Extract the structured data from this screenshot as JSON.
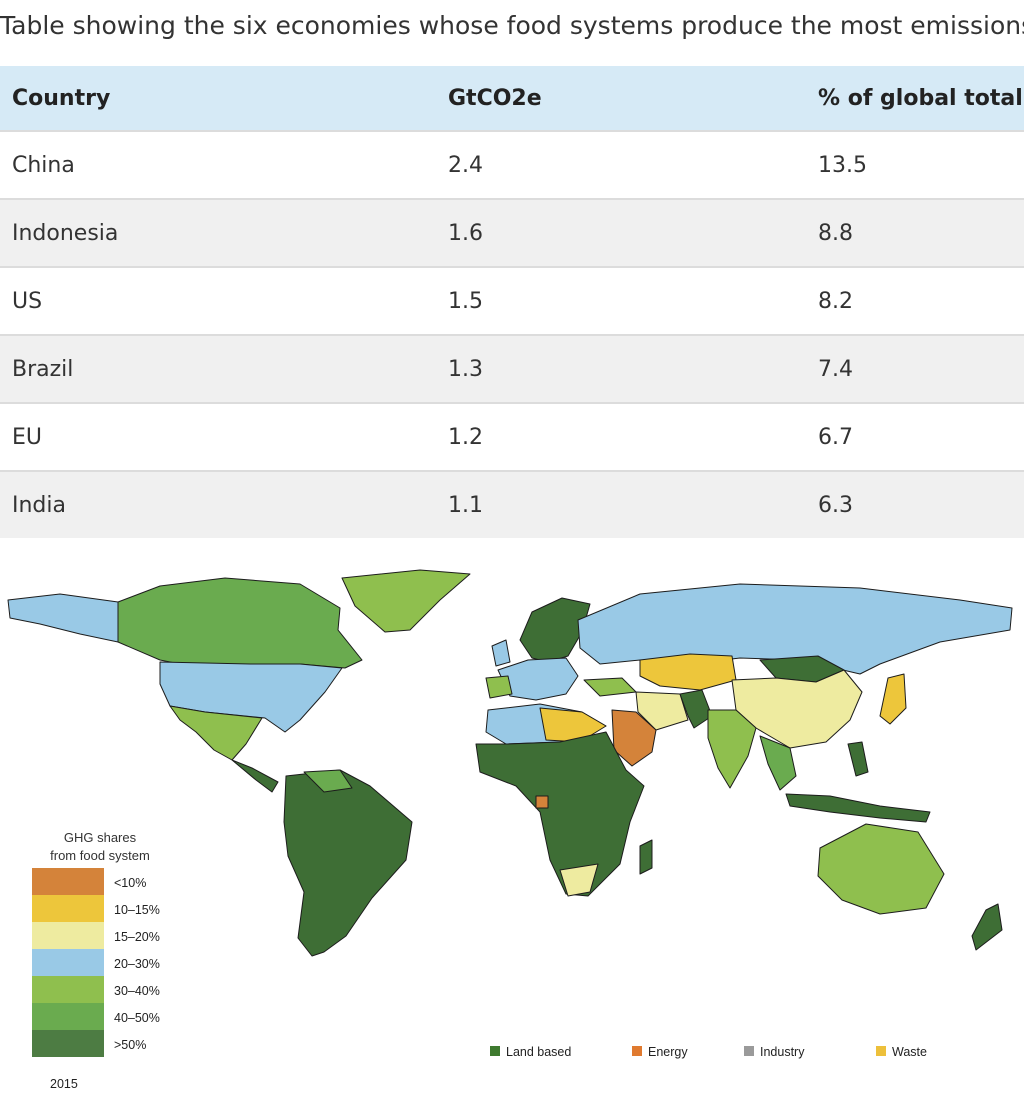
{
  "caption": "Table showing the six economies whose food systems produce the most emissions",
  "table": {
    "headers": [
      "Country",
      "GtCO2e",
      "% of global total"
    ],
    "rows": [
      [
        "China",
        "2.4",
        "13.5"
      ],
      [
        "Indonesia",
        "1.6",
        "8.8"
      ],
      [
        "US",
        "1.5",
        "8.2"
      ],
      [
        "Brazil",
        "1.3",
        "7.4"
      ],
      [
        "EU",
        "1.2",
        "6.7"
      ],
      [
        "India",
        "1.1",
        "6.3"
      ]
    ]
  },
  "map": {
    "legend_title_line1": "GHG shares",
    "legend_title_line2": "from food system",
    "legend_items": [
      {
        "label": "<10%",
        "color": "#d4833a"
      },
      {
        "label": "10–15%",
        "color": "#edc63b"
      },
      {
        "label": "15–20%",
        "color": "#eeeba0"
      },
      {
        "label": "20–30%",
        "color": "#99c9e6"
      },
      {
        "label": "30–40%",
        "color": "#8fbf4e"
      },
      {
        "label": "40–50%",
        "color": "#6aab4f"
      },
      {
        "label": ">50%",
        "color": "#3e6e35"
      }
    ],
    "year": "2015",
    "sector_legend": [
      {
        "label": "Land based",
        "color": "#3e7a2f"
      },
      {
        "label": "Energy",
        "color": "#e07a2f"
      },
      {
        "label": "Industry",
        "color": "#9a9a9a"
      },
      {
        "label": "Waste",
        "color": "#edc03b"
      }
    ]
  }
}
